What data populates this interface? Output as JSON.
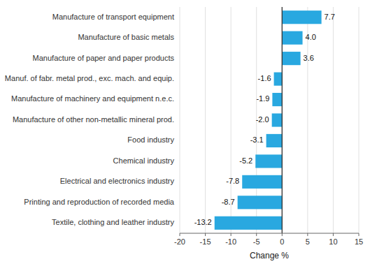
{
  "chart_data": {
    "type": "bar",
    "orientation": "horizontal",
    "categories": [
      "Textile, clothing and leather industry",
      "Printing and reproduction of recorded media",
      "Electrical and electronics industry",
      "Chemical industry",
      "Food industry",
      "Manufacture of other non-metallic mineral prod.",
      "Manufacture of machinery and equipment n.e.c.",
      "Manuf. of fabr. metal prod., exc. mach. and equip.",
      "Manufacture of paper and paper products",
      "Manufacture of basic metals",
      "Manufacture of transport equipment"
    ],
    "values": [
      -13.2,
      -8.7,
      -7.8,
      -5.2,
      -3.1,
      -2.0,
      -1.9,
      -1.6,
      3.6,
      4.0,
      7.7
    ],
    "value_labels": [
      "-13.2",
      "-8.7",
      "-7.8",
      "-5.2",
      "-3.1",
      "-2.0",
      "-1.9",
      "-1.6",
      "3.6",
      "4.0",
      "7.7"
    ],
    "color": "#29a8e0",
    "xlabel": "Change %",
    "xlim": [
      -20,
      15
    ],
    "xticks": [
      -20,
      -15,
      -10,
      -5,
      0,
      5,
      10,
      15
    ],
    "grid": true,
    "data_labels": true
  }
}
